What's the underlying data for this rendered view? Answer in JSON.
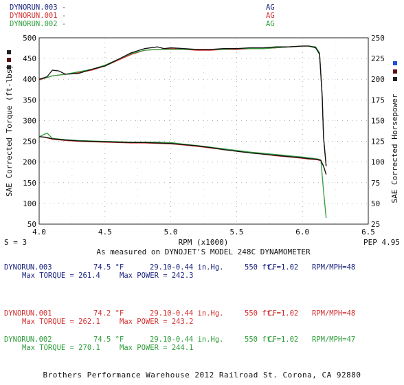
{
  "legend": [
    {
      "name": "DYNORUN.003",
      "tag": "AG",
      "color": "#1a237e"
    },
    {
      "name": "DYNORUN.001",
      "tag": "AG",
      "color": "#d32f2f"
    },
    {
      "name": "DYNORUN.002",
      "tag": "AG",
      "color": "#2e9d3a"
    }
  ],
  "chart_data": {
    "type": "line",
    "xlabel": "RPM (x1000)",
    "ylabel_left": "SAE Corrected Torque (ft-lbs)",
    "ylabel_right": "SAE Corrected Horsepower",
    "xlim": [
      4.0,
      6.5
    ],
    "ylim_left": [
      50,
      500
    ],
    "ylim_right": [
      25,
      250
    ],
    "x_ticks": [
      "4.0",
      "4.5",
      "5.0",
      "5.5",
      "6.0",
      "6.5"
    ],
    "y_ticks_left": [
      "50",
      "100",
      "150",
      "200",
      "250",
      "300",
      "350",
      "400",
      "450",
      "500"
    ],
    "y_ticks_right": [
      "25",
      "50",
      "75",
      "100",
      "125",
      "150",
      "175",
      "200",
      "225",
      "250"
    ],
    "grid": "dotted",
    "smoothing_label": "S = 3",
    "corner_label": "PEP 4.95",
    "subtitle": "As measured on DYNOJET'S MODEL 248C DYNAMOMETER",
    "horsepower_series": [
      {
        "name": "DYNORUN.003",
        "color": "#111111",
        "x": [
          4.0,
          4.06,
          4.1,
          4.15,
          4.2,
          4.3,
          4.4,
          4.5,
          4.6,
          4.7,
          4.8,
          4.9,
          4.95,
          5.0,
          5.1,
          5.2,
          5.3,
          5.4,
          5.5,
          5.6,
          5.7,
          5.8,
          5.9,
          6.0,
          6.05,
          6.1,
          6.13,
          6.15,
          6.16,
          6.18
        ],
        "y": [
          200,
          203,
          211,
          210,
          206,
          207,
          212,
          216,
          224,
          232,
          237,
          239,
          237,
          238,
          237,
          236,
          236,
          237,
          237,
          238,
          238,
          239,
          239,
          240,
          240,
          238,
          230,
          180,
          130,
          95
        ]
      },
      {
        "name": "DYNORUN.001",
        "color": "#d32f2f",
        "x": [
          4.0,
          4.06,
          4.1,
          4.2,
          4.3,
          4.4,
          4.5,
          4.6,
          4.7,
          4.8,
          4.9,
          5.0,
          5.1,
          5.2,
          5.3,
          5.4,
          5.5,
          5.6,
          5.7,
          5.8,
          5.9,
          6.0,
          6.05,
          6.1,
          6.13,
          6.15,
          6.16,
          6.18
        ],
        "y": [
          199,
          202,
          204,
          206,
          208,
          211,
          216,
          223,
          230,
          235,
          236,
          237,
          236,
          235,
          235,
          236,
          236,
          237,
          237,
          238,
          239,
          240,
          240,
          238,
          231,
          180,
          130,
          95
        ]
      },
      {
        "name": "DYNORUN.002",
        "color": "#2e9d3a",
        "x": [
          4.0,
          4.06,
          4.1,
          4.2,
          4.3,
          4.4,
          4.5,
          4.6,
          4.7,
          4.8,
          4.9,
          5.0,
          5.1,
          5.2,
          5.3,
          5.4,
          5.5,
          5.6,
          5.7,
          5.8,
          5.9,
          6.0,
          6.05,
          6.1,
          6.13,
          6.15,
          6.16,
          6.18
        ],
        "y": [
          200,
          202,
          204,
          206,
          209,
          212,
          217,
          224,
          231,
          235,
          236,
          236,
          236,
          236,
          236,
          236,
          237,
          237,
          237,
          238,
          239,
          240,
          240,
          239,
          232,
          180,
          130,
          95
        ]
      }
    ],
    "torque_series": [
      {
        "name": "DYNORUN.003",
        "color": "#111111",
        "x": [
          4.0,
          4.05,
          4.1,
          4.2,
          4.3,
          4.4,
          4.5,
          4.6,
          4.7,
          4.8,
          4.9,
          5.0,
          5.1,
          5.2,
          5.3,
          5.4,
          5.5,
          5.6,
          5.7,
          5.8,
          5.9,
          6.0,
          6.05,
          6.1,
          6.12,
          6.14,
          6.16,
          6.18
        ],
        "y": [
          261,
          260,
          256,
          253,
          251,
          250,
          249,
          248,
          247,
          247,
          246,
          245,
          242,
          239,
          235,
          230,
          226,
          222,
          219,
          216,
          213,
          210,
          208,
          207,
          206,
          204,
          190,
          170
        ]
      },
      {
        "name": "DYNORUN.001",
        "color": "#d32f2f",
        "x": [
          4.0,
          4.05,
          4.1,
          4.2,
          4.3,
          4.4,
          4.5,
          4.6,
          4.7,
          4.8,
          4.9,
          5.0,
          5.1,
          5.2,
          5.3,
          5.4,
          5.5,
          5.6,
          5.7,
          5.8,
          5.9,
          6.0,
          6.05,
          6.1,
          6.12,
          6.14,
          6.16,
          6.18
        ],
        "y": [
          262,
          259,
          255,
          252,
          250,
          249,
          248,
          247,
          246,
          246,
          245,
          244,
          241,
          238,
          234,
          230,
          226,
          222,
          219,
          215,
          212,
          209,
          207,
          206,
          205,
          203,
          190,
          170
        ]
      },
      {
        "name": "DYNORUN.002",
        "color": "#2e9d3a",
        "x": [
          4.0,
          4.06,
          4.1,
          4.2,
          4.3,
          4.4,
          4.5,
          4.6,
          4.7,
          4.8,
          4.9,
          5.0,
          5.1,
          5.2,
          5.3,
          5.4,
          5.5,
          5.6,
          5.7,
          5.8,
          5.9,
          6.0,
          6.05,
          6.1,
          6.12,
          6.14,
          6.16,
          6.18
        ],
        "y": [
          261,
          270,
          257,
          254,
          252,
          251,
          250,
          249,
          248,
          248,
          248,
          247,
          243,
          240,
          236,
          232,
          228,
          224,
          221,
          218,
          215,
          212,
          210,
          208,
          207,
          205,
          130,
          65
        ]
      }
    ]
  },
  "runs": [
    {
      "name": "DYNORUN.003",
      "temp": "74.5 °F",
      "pressure": "29.10-0.44 in.Hg.",
      "altitude": "550 ft.",
      "cf": "CF=1.02",
      "rpm_mph": "RPM/MPH=48",
      "max_torque": "Max TORQUE = 261.4",
      "max_power": "Max POWER = 242.3",
      "color": "#1a237e"
    },
    {
      "name": "DYNORUN.001",
      "temp": "74.2 °F",
      "pressure": "29.10-0.44 in.Hg.",
      "altitude": "550 ft.",
      "cf": "CF=1.02",
      "rpm_mph": "RPM/MPH=48",
      "max_torque": "Max TORQUE = 262.1",
      "max_power": "Max POWER = 243.2",
      "color": "#d32f2f"
    },
    {
      "name": "DYNORUN.002",
      "temp": "74.5 °F",
      "pressure": "29.10-0.44 in.Hg.",
      "altitude": "550 ft.",
      "cf": "CF=1.02",
      "rpm_mph": "RPM/MPH=47",
      "max_torque": "Max TORQUE = 270.1",
      "max_power": "Max POWER = 244.1",
      "color": "#2e9d3a"
    }
  ],
  "footer": "Brothers Performance Warehouse 2012 Railroad St. Corona, CA 92880"
}
